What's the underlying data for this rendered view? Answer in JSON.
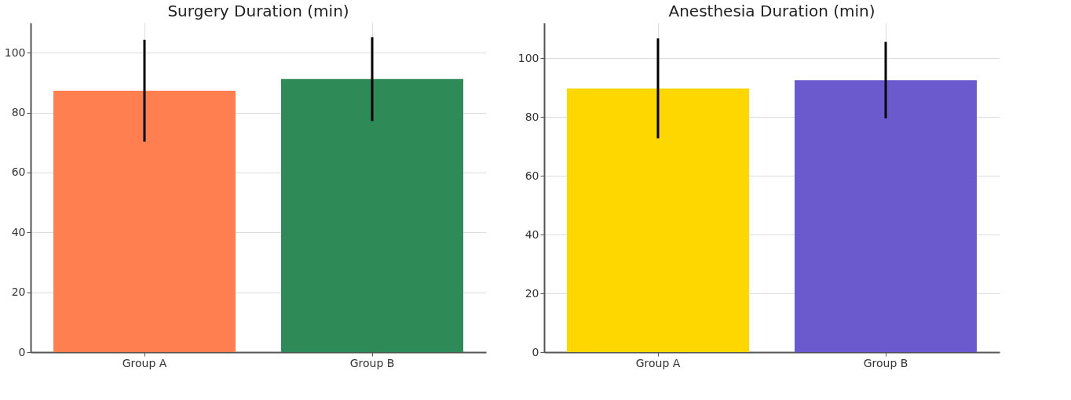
{
  "chart_data": [
    {
      "type": "bar",
      "title": "Surgery Duration (min)",
      "categories": [
        "Group A",
        "Group B"
      ],
      "values": [
        87.3,
        91.2
      ],
      "colors": [
        "#ff7f50",
        "#2e8b57"
      ],
      "errors": [
        17,
        14
      ],
      "ylim": [
        0,
        110
      ],
      "yticks": [
        0,
        20,
        40,
        60,
        80,
        100
      ],
      "grid": true
    },
    {
      "type": "bar",
      "title": "Anesthesia Duration (min)",
      "categories": [
        "Group A",
        "Group B"
      ],
      "values": [
        89.7,
        92.5
      ],
      "colors": [
        "#ffd700",
        "#6a5acd"
      ],
      "errors": [
        17,
        13
      ],
      "ylim": [
        0,
        112
      ],
      "yticks": [
        0,
        20,
        40,
        60,
        80,
        100
      ],
      "grid": true
    }
  ]
}
